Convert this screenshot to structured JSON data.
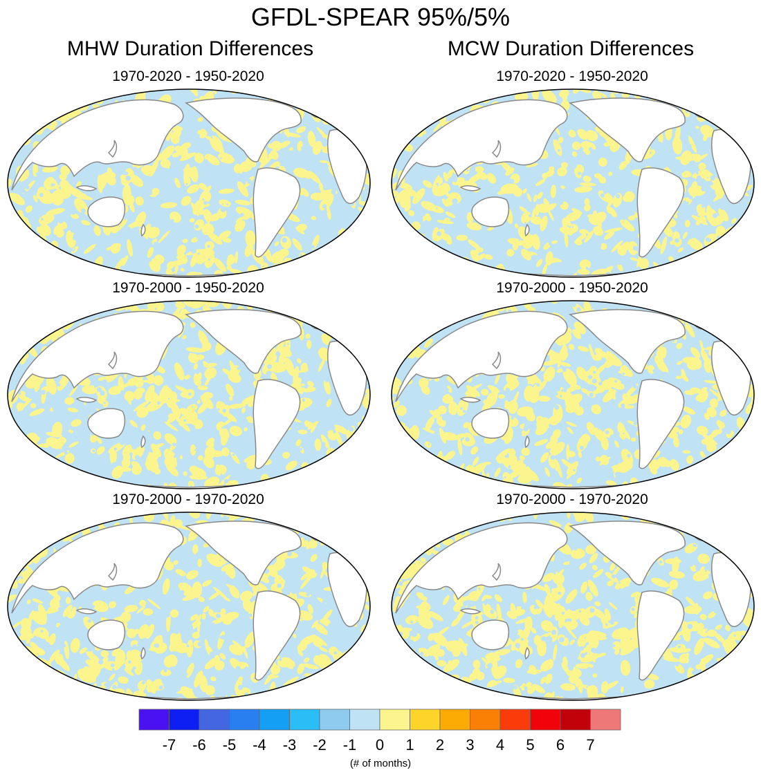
{
  "title": "GFDL-SPEAR 95%/5%",
  "columns": [
    {
      "title": "MHW Duration Differences"
    },
    {
      "title": "MCW Duration Differences"
    }
  ],
  "panels": [
    {
      "col": 0,
      "row": 0,
      "title": "1970-2020 - 1950-2020",
      "seed": 11
    },
    {
      "col": 1,
      "row": 0,
      "title": "1970-2020 - 1950-2020",
      "seed": 23
    },
    {
      "col": 0,
      "row": 1,
      "title": "1970-2000 - 1950-2020",
      "seed": 37
    },
    {
      "col": 1,
      "row": 1,
      "title": "1970-2000 - 1950-2020",
      "seed": 41
    },
    {
      "col": 0,
      "row": 2,
      "title": "1970-2000 - 1970-2020",
      "seed": 53
    },
    {
      "col": 1,
      "row": 2,
      "title": "1970-2000 - 1970-2020",
      "seed": 67
    }
  ],
  "colorbar": {
    "label": "(# of months)",
    "tick_labels": [
      "-7",
      "-6",
      "-5",
      "-4",
      "-3",
      "-2",
      "-1",
      "0",
      "1",
      "2",
      "3",
      "4",
      "5",
      "6",
      "7"
    ],
    "colors": [
      "#4a12f2",
      "#0d1ff2",
      "#4466e0",
      "#2a7ff0",
      "#149ff5",
      "#2bbdf5",
      "#8ecbef",
      "#c0e2f5",
      "#fcf58e",
      "#fdd42a",
      "#fcab05",
      "#f97f05",
      "#fb3b0a",
      "#f2020a",
      "#c2020a",
      "#ee7778"
    ]
  },
  "map_colors": {
    "positive": "#fcf58e",
    "negative": "#c0e2f5",
    "land": "#ffffff",
    "coast": "#888888"
  }
}
